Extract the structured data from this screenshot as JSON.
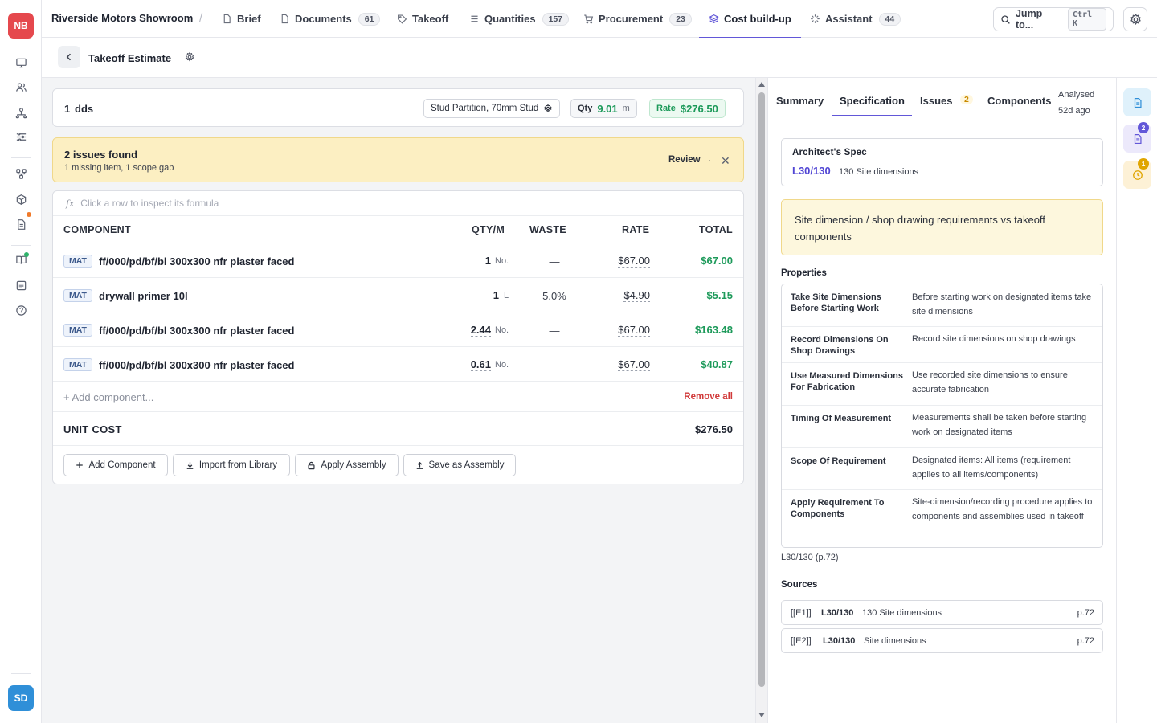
{
  "rail": {
    "logo": "NB",
    "user": "SD"
  },
  "nav": {
    "project": "Riverside Motors Showroom",
    "separator": "/",
    "tabs": [
      {
        "label": "Brief",
        "icon": "file-icon",
        "count": ""
      },
      {
        "label": "Documents",
        "icon": "file-icon",
        "count": "61"
      },
      {
        "label": "Takeoff",
        "icon": "tag-icon",
        "count": ""
      },
      {
        "label": "Quantities",
        "icon": "list-icon",
        "count": "157"
      },
      {
        "label": "Procurement",
        "icon": "cart-icon",
        "count": "23"
      },
      {
        "label": "Cost build-up",
        "icon": "layers-icon",
        "count": ""
      },
      {
        "label": "Assistant",
        "icon": "sparkle-icon",
        "count": "44"
      }
    ],
    "jump_label": "Jump to...",
    "jump_kbd": "Ctrl K"
  },
  "subheader": {
    "title": "Takeoff Estimate"
  },
  "line": {
    "number": "1",
    "name": "dds",
    "assembly": "Stud Partition, 70mm Stud",
    "qty_label": "Qty",
    "qty_value": "9.01",
    "qty_unit": "m",
    "rate_label": "Rate",
    "rate_value": "$276.50"
  },
  "issues": {
    "title": "2 issues found",
    "subtitle": "1 missing item, 1 scope gap",
    "review_label": "Review →",
    "close": "✕"
  },
  "table": {
    "formula_hint": "Click a row to inspect its formula",
    "fx": "fx",
    "headers": {
      "component": "COMPONENT",
      "qty": "QTY/M",
      "waste": "WASTE",
      "rate": "RATE",
      "total": "TOTAL"
    },
    "rows": [
      {
        "type": "MAT",
        "name": "ff/000/pd/bf/bl 300x300 nfr plaster faced",
        "qty": "1",
        "unit": "No.",
        "waste": "—",
        "rate": "$67.00",
        "total": "$67.00"
      },
      {
        "type": "MAT",
        "name": "drywall primer 10l",
        "qty": "1",
        "unit": "L",
        "waste": "5.0%",
        "rate": "$4.90",
        "total": "$5.15"
      },
      {
        "type": "MAT",
        "name": "ff/000/pd/bf/bl 300x300 nfr plaster faced",
        "qty": "2.44",
        "unit": "No.",
        "waste": "—",
        "rate": "$67.00",
        "total": "$163.48"
      },
      {
        "type": "MAT",
        "name": "ff/000/pd/bf/bl 300x300 nfr plaster faced",
        "qty": "0.61",
        "unit": "No.",
        "waste": "—",
        "rate": "$67.00",
        "total": "$40.87"
      }
    ],
    "add_component": "+ Add component...",
    "remove_all": "Remove all",
    "unit_cost_label": "UNIT COST",
    "unit_cost_value": "$276.50",
    "buttons": [
      "Add Component",
      "Import from Library",
      "Apply Assembly",
      "Save as Assembly"
    ]
  },
  "panel": {
    "tabs": [
      "Summary",
      "Specification",
      "Issues",
      "Components"
    ],
    "issues_count": "2",
    "analysed_label": "Analysed",
    "analysed_ago": "52d ago",
    "spec_heading": "Architect's Spec",
    "spec_ref": "L30/130",
    "spec_text": "130 Site dimensions",
    "requirement": "Site dimension / shop drawing requirements vs takeoff components",
    "properties_heading": "Properties",
    "properties": [
      {
        "key": "Take Site Dimensions Before Starting Work",
        "value": "Before starting work on designated items take site dimensions"
      },
      {
        "key": "Record Dimensions On Shop Drawings",
        "value": "Record site dimensions on shop drawings"
      },
      {
        "key": "Use Measured Dimensions For Fabrication",
        "value": "Use recorded site dimensions to ensure accurate fabrication"
      },
      {
        "key": "Timing Of Measurement",
        "value": "Measurements shall be taken before starting work on designated items"
      },
      {
        "key": "Scope Of Requirement",
        "value": "Designated items: All items (requirement applies to all items/components)"
      },
      {
        "key": "Apply Requirement To Components",
        "value": "Site-dimension/recording procedure applies to components and assemblies used in takeoff"
      }
    ],
    "ref_note": "L30/130 (p.72)",
    "sources_heading": "Sources",
    "sources": [
      {
        "tag": "[[E1]]",
        "ref": "L30/130",
        "text": "130 Site dimensions",
        "page": "p.72"
      },
      {
        "tag": "[[E2]]",
        "ref": "L30/130",
        "text": "Site dimensions",
        "page": "p.72"
      }
    ]
  },
  "far_rail": {
    "badge_docs": "2",
    "badge_history": "1"
  }
}
